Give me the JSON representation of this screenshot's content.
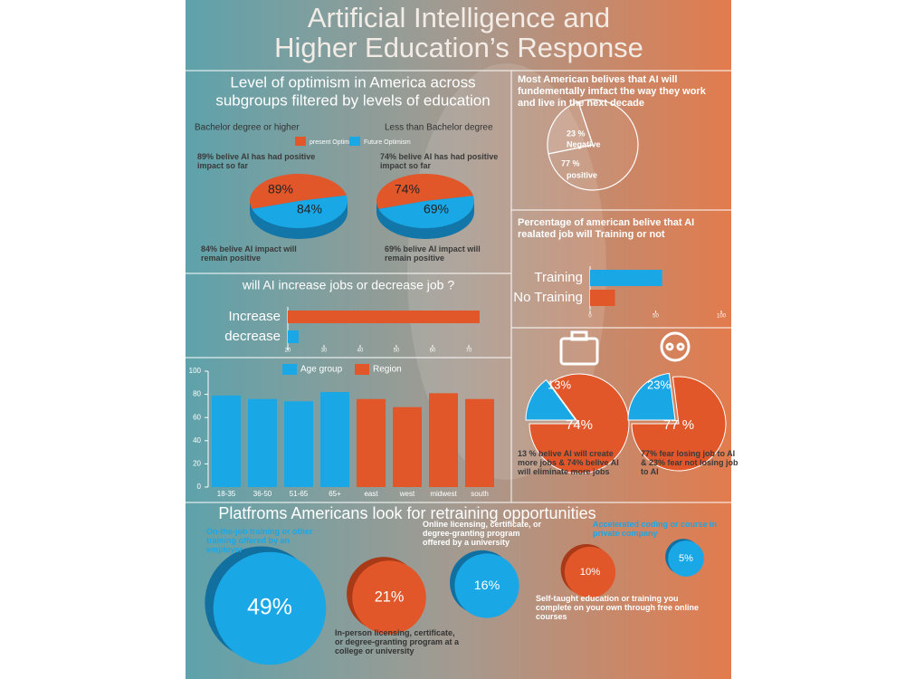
{
  "title": [
    "Artificial Intelligence and",
    "Higher Education’s Response"
  ],
  "optimism": {
    "title": [
      "Level of optimism in America across",
      "subgroups filtered by levels of education"
    ],
    "legend": [
      {
        "name": "present Optimism",
        "color": "#e2572a"
      },
      {
        "name": "Future Optimism",
        "color": "#1aa7e6"
      }
    ],
    "groups": [
      {
        "name": "Bachelor degree or higher",
        "note_top": "89% belive AI has had positive impact so far",
        "note_bottom": "84% belive AI impact will remain positive",
        "values": [
          89,
          84
        ],
        "value_labels": [
          "89%",
          "84%"
        ]
      },
      {
        "name": "Less than Bachelor degree",
        "note_top": "74% belive AI has had positive impact so far",
        "note_bottom": "69% belive AI impact will remain positive",
        "values": [
          74,
          69
        ],
        "value_labels": [
          "74%",
          "69%"
        ]
      }
    ]
  },
  "jobs": {
    "title": "will AI increase jobs or decrease job ?",
    "categories": [
      "Increase",
      "decrease"
    ],
    "values": [
      73,
      23
    ],
    "colors": [
      "#e2572a",
      "#1aa7e6"
    ],
    "xlim": [
      20,
      75
    ],
    "xticks": [
      20,
      30,
      40,
      50,
      60,
      70
    ]
  },
  "groups_chart": {
    "series": [
      {
        "name": "Age group",
        "color": "#1aa7e6",
        "categories": [
          "18-35",
          "36-50",
          "51-65",
          "65+"
        ],
        "values": [
          79,
          76,
          74,
          82
        ]
      },
      {
        "name": "Region",
        "color": "#e2572a",
        "categories": [
          "east",
          "west",
          "midwest",
          "south"
        ],
        "values": [
          76,
          69,
          81,
          76
        ]
      }
    ],
    "ylim": [
      0,
      100
    ],
    "yticks": [
      0,
      20,
      40,
      60,
      80,
      100
    ]
  },
  "impact": {
    "title": "Most American belives that AI will fundementally imfact the way they work and live in the next decade",
    "slices": [
      {
        "value": 23,
        "value_label": "23 %",
        "label": "Negative"
      },
      {
        "value": 77,
        "value_label": "77 %",
        "label": "positive"
      }
    ]
  },
  "training": {
    "title": "Percentage of american belive that AI realated job will Training or not",
    "categories": [
      "Training",
      "No Training"
    ],
    "values": [
      55,
      19
    ],
    "colors": [
      "#1aa7e6",
      "#e2572a"
    ],
    "xlim": [
      0,
      100
    ],
    "xticks": [
      0,
      50,
      100
    ]
  },
  "fears": [
    {
      "values": [
        13,
        74
      ],
      "value_labels": [
        "13%",
        "74%"
      ],
      "caption": "13 % belive AI will create more jobs & 74% belive AI will eliminate more jobs"
    },
    {
      "values": [
        23,
        77
      ],
      "value_labels": [
        "23%",
        "77 %"
      ],
      "caption": "77% fear losing job to AI & 23% fear not losing job to AI"
    }
  ],
  "platforms": {
    "title": "Platfroms Americans look for retraining opportunities",
    "items": [
      {
        "value": 49,
        "value_label": "49%",
        "label": "On-the-job training or other training offered by an employer"
      },
      {
        "value": 21,
        "value_label": "21%",
        "label": "In-person licensing, certificate, or degree-granting program at a college or university"
      },
      {
        "value": 16,
        "value_label": "16%",
        "label": "Online licensing, certificate, or degree-granting program offered by a university"
      },
      {
        "value": 10,
        "value_label": "10%",
        "label": "Self-taught education or training you complete on your own through free online courses"
      },
      {
        "value": 5,
        "value_label": "5%",
        "label": "Accelerated coding or course in private company"
      }
    ]
  }
}
